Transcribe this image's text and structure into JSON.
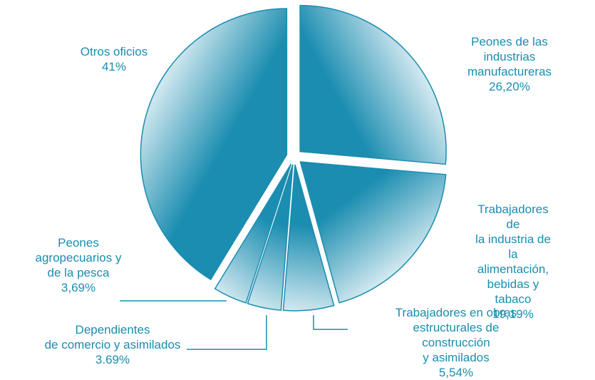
{
  "chart_data": {
    "type": "pie",
    "categories": [
      "Peones de las industrias\nmanufactureras",
      "Trabajadores de\nla industria de\nla alimentación,\nbebidas y tabaco",
      "Trabajadores en obras\nestructurales de construcción\ny asimilados",
      "Dependientes\nde comercio y asimilados",
      "Peones\nagropecuarios y\nde la pesca",
      "Otros oficios"
    ],
    "values": [
      26.2,
      19.19,
      5.54,
      3.69,
      3.69,
      41
    ],
    "value_labels": [
      "26,20%",
      "19,19%",
      "5,54%",
      "3.69%",
      "3,69%",
      "41%"
    ],
    "color": "#1a8db0"
  }
}
